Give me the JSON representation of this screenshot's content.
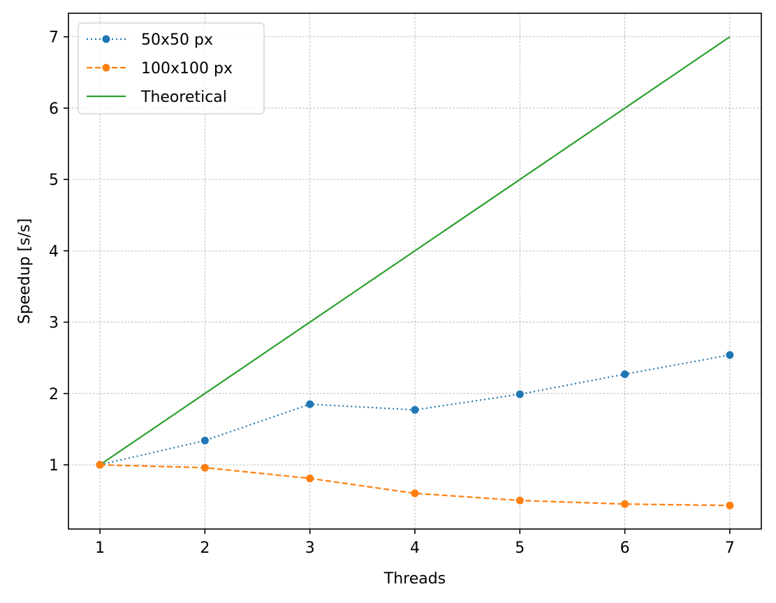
{
  "chart_data": {
    "type": "line",
    "title": "",
    "xlabel": "Threads",
    "ylabel": "Speedup [s/s]",
    "x": [
      1,
      2,
      3,
      4,
      5,
      6,
      7
    ],
    "xticks": [
      "1",
      "2",
      "3",
      "4",
      "5",
      "6",
      "7"
    ],
    "yticks": [
      "1",
      "2",
      "3",
      "4",
      "5",
      "6",
      "7"
    ],
    "xlim": [
      0.7,
      7.3
    ],
    "ylim": [
      0.1,
      7.33
    ],
    "grid": true,
    "legend_position": "top-left",
    "series": [
      {
        "name": "50x50 px",
        "values": [
          1.0,
          1.34,
          1.85,
          1.77,
          1.99,
          2.27,
          2.54
        ],
        "color": "#1f77b4",
        "linestyle": "dotted",
        "marker": "circle"
      },
      {
        "name": "100x100 px",
        "values": [
          1.0,
          0.96,
          0.81,
          0.6,
          0.5,
          0.45,
          0.43
        ],
        "color": "#ff7f0e",
        "linestyle": "dashed",
        "marker": "circle"
      },
      {
        "name": "Theoretical",
        "values": [
          1,
          2,
          3,
          4,
          5,
          6,
          7
        ],
        "color": "#2ca02c",
        "linestyle": "solid",
        "marker": "none"
      }
    ]
  }
}
